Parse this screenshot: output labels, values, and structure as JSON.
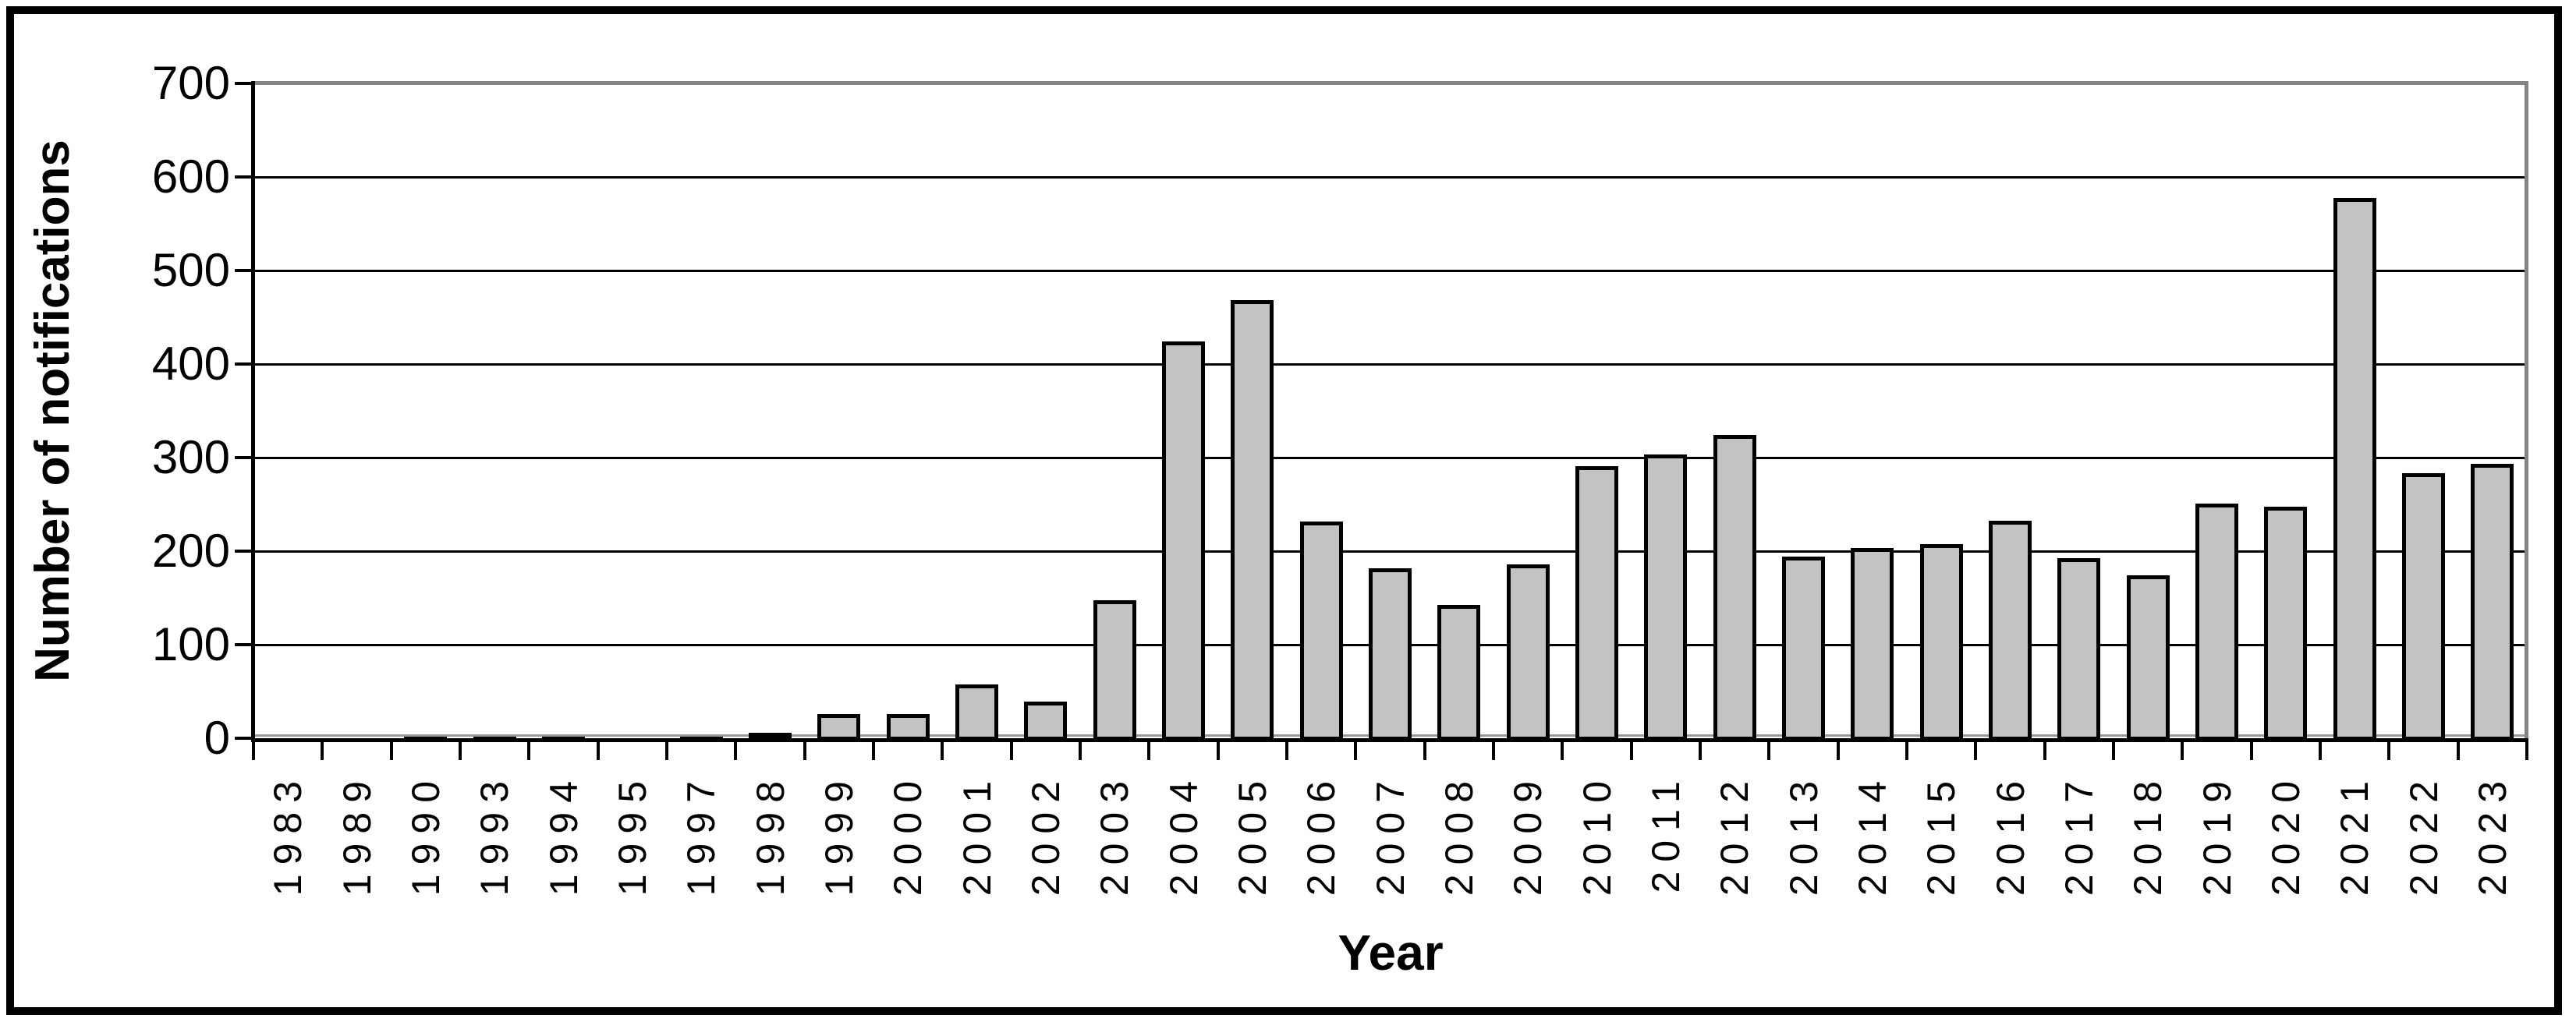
{
  "figure": {
    "background": "#ffffff",
    "outer_border_color": "#000000",
    "plot_top_right_border_color": "#848484"
  },
  "chart_data": {
    "type": "bar",
    "title": "",
    "xlabel": "Year",
    "ylabel": "Number of notifications",
    "categories": [
      "1983",
      "1989",
      "1990",
      "1993",
      "1994",
      "1995",
      "1997",
      "1998",
      "1999",
      "2000",
      "2001",
      "2002",
      "2003",
      "2004",
      "2005",
      "2006",
      "2007",
      "2008",
      "2009",
      "2010",
      "2011",
      "2012",
      "2013",
      "2014",
      "2015",
      "2016",
      "2017",
      "2018",
      "2019",
      "2020",
      "2021",
      "2022",
      "2023"
    ],
    "values": [
      1,
      1,
      4,
      4,
      4,
      1,
      4,
      8,
      28,
      28,
      60,
      42,
      150,
      427,
      471,
      234,
      184,
      145,
      188,
      293,
      306,
      327,
      197,
      206,
      210,
      235,
      195,
      177,
      253,
      250,
      580,
      286,
      296
    ],
    "ylim": [
      0,
      700
    ],
    "ytick_step": 100,
    "ytick_labels": [
      "0",
      "100",
      "200",
      "300",
      "400",
      "500",
      "600",
      "700"
    ],
    "grid": "horizontal",
    "legend": "none",
    "bar_fill": "#c3c3c3",
    "bar_border": "#000000",
    "gridline_color": "#000000"
  }
}
